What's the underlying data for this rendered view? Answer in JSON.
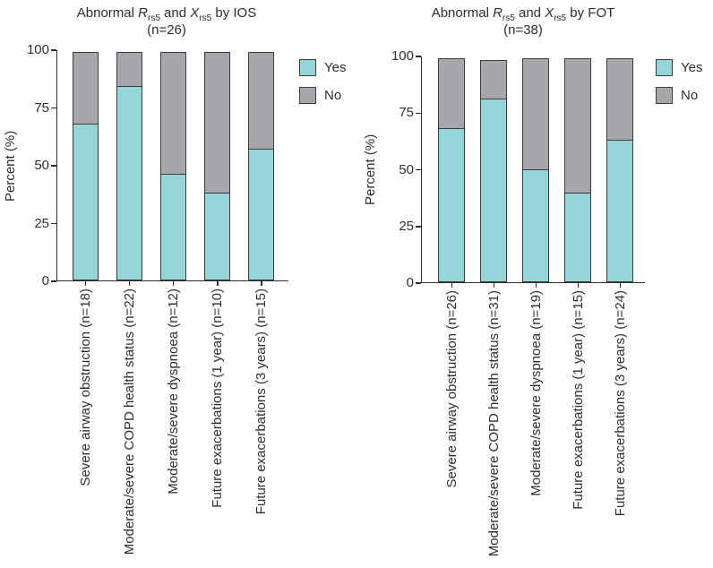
{
  "colors": {
    "yes": "#95d5d8",
    "no": "#a6a6ab",
    "border": "#3d3d3d",
    "axis": "#2e2e2e",
    "text": "#2e2e2e",
    "background": "#ffffff"
  },
  "legend": {
    "yes_label": "Yes",
    "no_label": "No"
  },
  "chart_data": [
    {
      "type": "bar",
      "stacked": true,
      "title_text": "Abnormal Rrs5 and Xrs5 by IOS",
      "title_parts": {
        "prefix": "Abnormal ",
        "r_sym": "R",
        "r_sub": "rs5",
        "mid": " and ",
        "x_sym": "X",
        "x_sub": "rs5",
        "suffix": " by IOS"
      },
      "subtitle": "(n=26)",
      "ylabel": "Percent (%)",
      "ylim": [
        0,
        100
      ],
      "yticks": [
        0,
        25,
        50,
        75,
        100
      ],
      "grid": false,
      "legend_position": "right-top",
      "legend_entries": [
        "Yes",
        "No"
      ],
      "categories": [
        "Severe airway obstruction (n=18)",
        "Moderate/severe COPD health status (n=22)",
        "Moderate/severe dyspnoea (n=12)",
        "Future exacerbations (1 year) (n=10)",
        "Future exacerbations (3 years) (n=15)"
      ],
      "series": [
        {
          "name": "Yes",
          "color_key": "yes",
          "values": [
            68,
            84,
            46,
            38,
            57
          ]
        },
        {
          "name": "No",
          "color_key": "no",
          "values": [
            31,
            15,
            53,
            61,
            42
          ]
        }
      ]
    },
    {
      "type": "bar",
      "stacked": true,
      "title_text": "Abnormal Rrs5 and Xrs5 by FOT",
      "title_parts": {
        "prefix": "Abnormal ",
        "r_sym": "R",
        "r_sub": "rs5",
        "mid": " and ",
        "x_sym": "X",
        "x_sub": "rs5",
        "suffix": " by FOT"
      },
      "subtitle": "(n=38)",
      "ylabel": "Percent (%)",
      "ylim": [
        0,
        100
      ],
      "yticks": [
        0,
        25,
        50,
        75,
        100
      ],
      "grid": false,
      "legend_position": "right-top",
      "legend_entries": [
        "Yes",
        "No"
      ],
      "categories": [
        "Severe airway obstruction (n=26)",
        "Moderate/severe COPD health status (n=31)",
        "Moderate/severe dyspnoea (n=19)",
        "Future exacerbations (1 year) (n=15)",
        "Future exacerbations (3 years) (n=24)"
      ],
      "series": [
        {
          "name": "Yes",
          "color_key": "yes",
          "values": [
            68,
            81,
            50,
            39.5,
            63
          ]
        },
        {
          "name": "No",
          "color_key": "no",
          "values": [
            31,
            17,
            49,
            59.5,
            36
          ]
        }
      ]
    }
  ]
}
